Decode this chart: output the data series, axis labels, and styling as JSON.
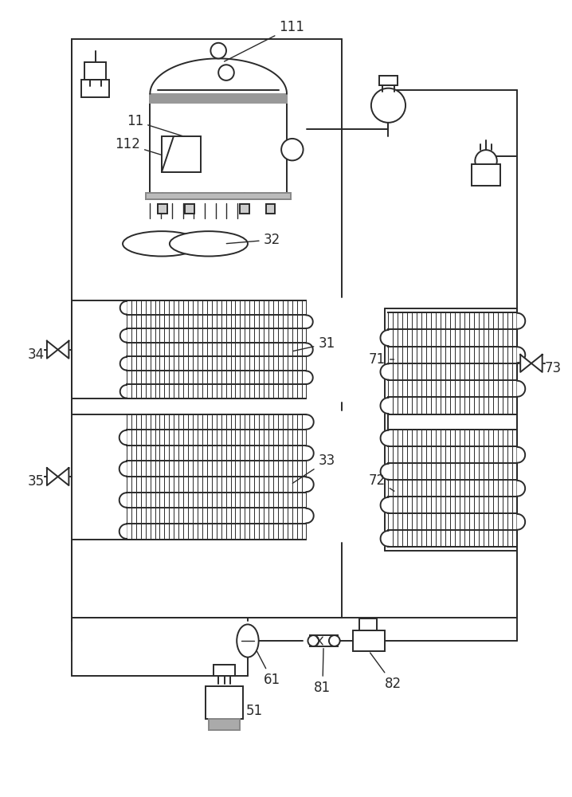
{
  "bg_color": "#ffffff",
  "line_color": "#2a2a2a",
  "line_width": 1.4,
  "label_color": "#2a2a2a",
  "fig_width": 7.18,
  "fig_height": 10.0
}
